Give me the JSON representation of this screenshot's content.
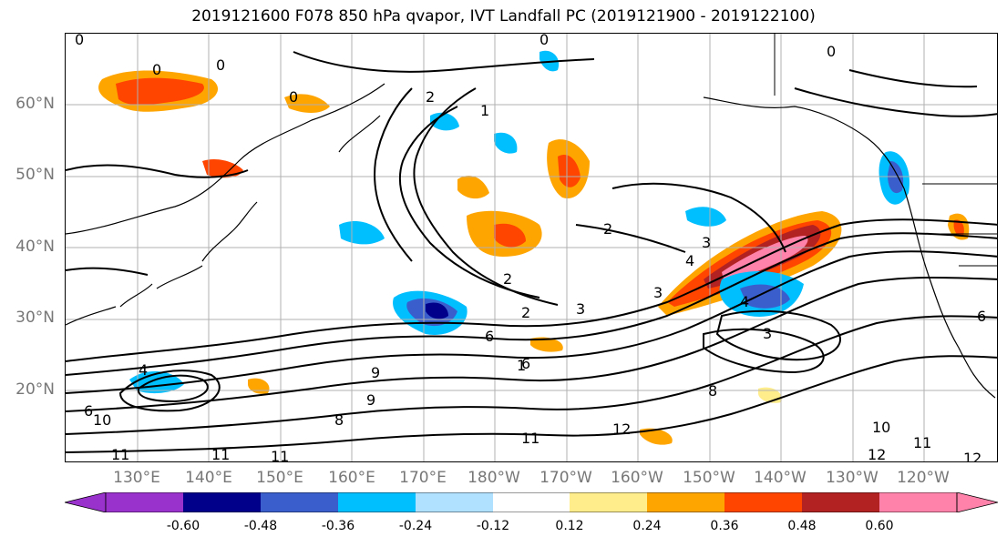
{
  "title": "2019121600 F078 850 hPa qvapor, IVT Landfall PC (2019121900 - 2019122100)",
  "map": {
    "lat_ticks": [
      "60°N",
      "50°N",
      "40°N",
      "30°N",
      "20°N"
    ],
    "lon_ticks": [
      "130°E",
      "140°E",
      "150°E",
      "160°E",
      "170°E",
      "180°W",
      "170°W",
      "160°W",
      "150°W",
      "140°W",
      "130°W",
      "120°W"
    ],
    "contour_labels": [
      "0",
      "0",
      "0",
      "0",
      "0",
      "0",
      "2",
      "1",
      "2",
      "2",
      "3",
      "4",
      "3",
      "2",
      "1",
      "3",
      "4",
      "3",
      "6",
      "4",
      "6",
      "9",
      "11",
      "10",
      "11",
      "11",
      "12",
      "11",
      "10",
      "12",
      "11",
      "12",
      "8",
      "6",
      "8",
      "9",
      "6"
    ]
  },
  "colorbar": {
    "colors": [
      "#9932CC",
      "#00008B",
      "#3A5FCD",
      "#00BFFF",
      "#B0E2FF",
      "#FFFFFF",
      "#FFEC8B",
      "#FFA500",
      "#FF4500",
      "#B22222",
      "#FF82AB"
    ],
    "tick_labels": [
      "-0.60",
      "-0.48",
      "-0.36",
      "-0.24",
      "-0.12",
      "0.12",
      "0.24",
      "0.36",
      "0.48",
      "0.60"
    ]
  }
}
